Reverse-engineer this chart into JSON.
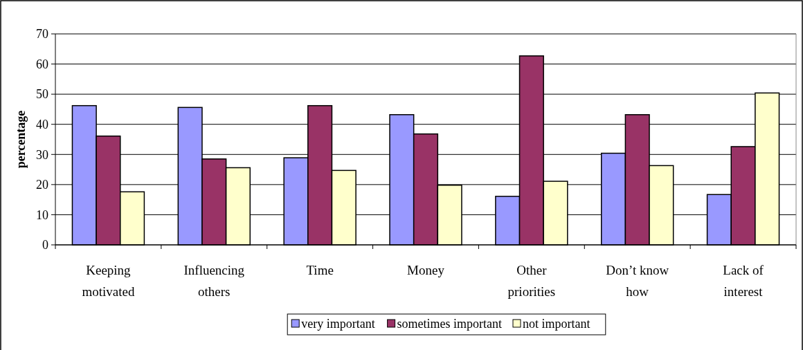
{
  "chart_data": {
    "type": "bar",
    "ylabel": "percentage",
    "categories": [
      "Keeping motivated",
      "Influencing others",
      "Time",
      "Money",
      "Other priorities",
      "Don’t know how",
      "Lack of interest"
    ],
    "series": [
      {
        "name": "very important",
        "color": "#9999ff",
        "values": [
          46.2,
          45.6,
          28.9,
          43.2,
          16.1,
          30.4,
          16.7
        ]
      },
      {
        "name": "sometimes important",
        "color": "#993366",
        "values": [
          36.1,
          28.5,
          46.2,
          36.8,
          62.7,
          43.2,
          32.6
        ]
      },
      {
        "name": "not important",
        "color": "#ffffcc",
        "values": [
          17.6,
          25.6,
          24.7,
          19.8,
          21.1,
          26.3,
          50.4
        ]
      }
    ],
    "ylim": [
      0,
      70
    ],
    "yticks": [
      0,
      10,
      20,
      30,
      40,
      50,
      60,
      70
    ],
    "grid": "y",
    "legend": "bottom"
  }
}
